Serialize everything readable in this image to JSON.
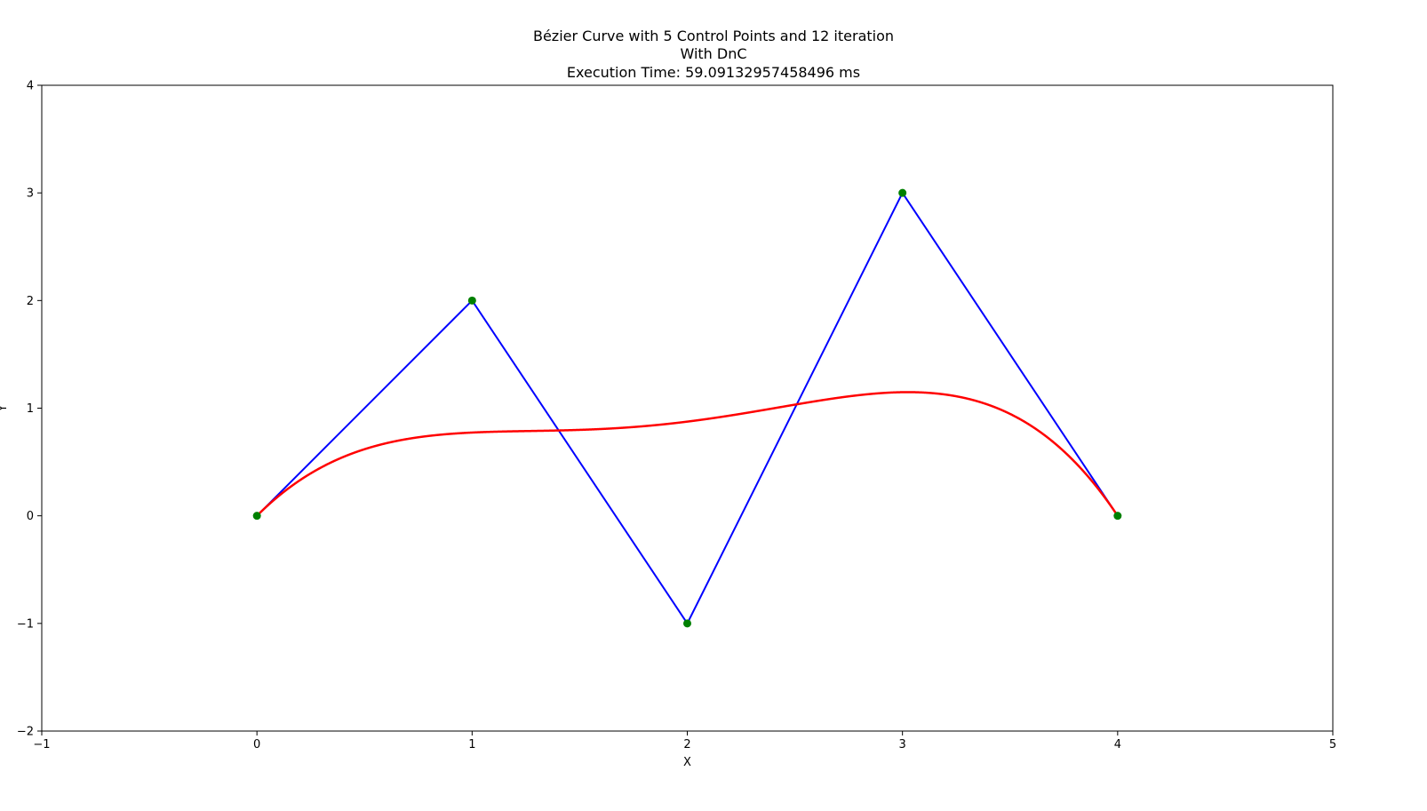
{
  "chart_data": {
    "type": "line",
    "title": "Bézier Curve with 5 Control Points and 12 iteration",
    "subtitle": "With DnC",
    "execution_time": "Execution Time: 59.09132957458496 ms",
    "xlabel": "X",
    "ylabel": "Y",
    "xlim": [
      -1,
      5
    ],
    "ylim": [
      -2,
      4
    ],
    "xticks": [
      -1,
      0,
      1,
      2,
      3,
      4,
      5
    ],
    "yticks": [
      -2,
      -1,
      0,
      1,
      2,
      3,
      4
    ],
    "xtick_labels": [
      "−1",
      "0",
      "1",
      "2",
      "3",
      "4",
      "5"
    ],
    "ytick_labels": [
      "−2",
      "−1",
      "0",
      "1",
      "2",
      "3",
      "4"
    ],
    "grid": false,
    "series": [
      {
        "role": "control-polygon",
        "color": "#0000ff",
        "x": [
          0,
          1,
          2,
          3,
          4
        ],
        "y": [
          0,
          2,
          -1,
          3,
          0
        ]
      },
      {
        "role": "control-points",
        "color": "#008000",
        "x": [
          0,
          1,
          2,
          3,
          4
        ],
        "y": [
          0,
          2,
          -1,
          3,
          0
        ]
      },
      {
        "role": "bezier-curve",
        "color": "#ff0000",
        "control_x": [
          0,
          1,
          2,
          3,
          4
        ],
        "control_y": [
          0,
          2,
          -1,
          3,
          0
        ],
        "iterations": 12
      }
    ]
  }
}
